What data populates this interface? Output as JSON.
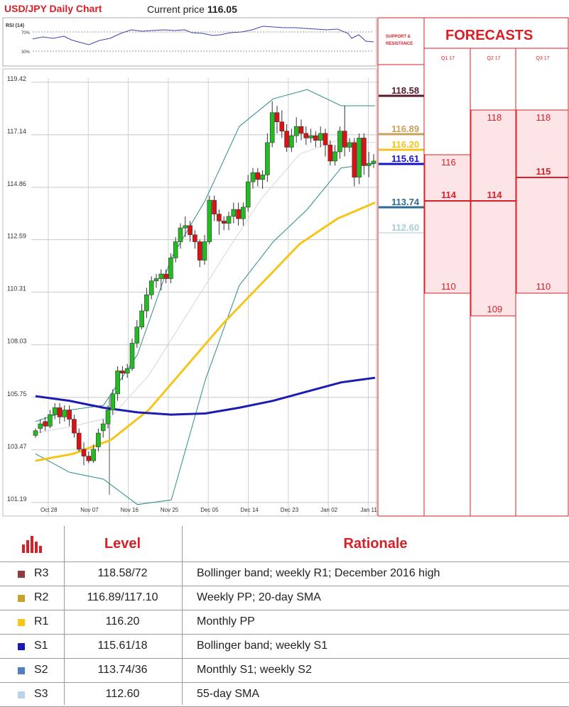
{
  "header": {
    "title": "USD/JPY Daily Chart",
    "price_prefix": "Current price",
    "price_value": "116.05"
  },
  "rsi": {
    "label": "RSI (14)",
    "upper": "70%",
    "lower": "30%"
  },
  "chart_data": {
    "type": "candlestick",
    "title": "USD/JPY Daily Chart",
    "ylim": [
      100.6,
      119.6
    ],
    "yticks": [
      "119.42",
      "117.14",
      "114.86",
      "112.59",
      "110.31",
      "108.03",
      "105.75",
      "103.47",
      "101.19"
    ],
    "xticks": [
      "Oct 28",
      "Nov 07",
      "Nov 16",
      "Nov 25",
      "Dec 05",
      "Dec 14",
      "Dec 23",
      "Jan 02",
      "Jan 11"
    ],
    "candles": [
      [
        104.1,
        104.3,
        104.0,
        104.4
      ],
      [
        104.4,
        104.6,
        104.2,
        104.8
      ],
      [
        104.7,
        104.5,
        104.3,
        104.9
      ],
      [
        104.5,
        105.0,
        104.4,
        105.2
      ],
      [
        105.0,
        105.3,
        104.8,
        105.5
      ],
      [
        105.3,
        104.9,
        104.6,
        105.5
      ],
      [
        104.9,
        105.2,
        104.7,
        105.4
      ],
      [
        105.2,
        104.8,
        104.5,
        105.4
      ],
      [
        104.8,
        104.2,
        104.0,
        105.0
      ],
      [
        104.2,
        103.5,
        103.4,
        104.4
      ],
      [
        103.5,
        103.2,
        102.8,
        103.8
      ],
      [
        103.2,
        103.0,
        102.9,
        103.4
      ],
      [
        103.0,
        103.5,
        102.9,
        103.7
      ],
      [
        103.6,
        104.2,
        103.4,
        104.4
      ],
      [
        104.3,
        104.6,
        104.0,
        104.8
      ],
      [
        104.6,
        105.2,
        104.4,
        105.4
      ],
      [
        105.2,
        105.9,
        105.0,
        106.1
      ],
      [
        105.9,
        106.9,
        105.6,
        107.1
      ],
      [
        106.9,
        106.8,
        106.5,
        107.1
      ],
      [
        106.8,
        107.0,
        106.6,
        107.2
      ],
      [
        107.0,
        108.1,
        106.9,
        108.3
      ],
      [
        108.1,
        108.8,
        107.9,
        109.1
      ],
      [
        108.8,
        109.5,
        108.7,
        109.8
      ],
      [
        109.5,
        110.2,
        109.2,
        110.5
      ],
      [
        110.2,
        110.8,
        110.0,
        111.0
      ],
      [
        110.8,
        110.9,
        110.5,
        111.1
      ],
      [
        110.9,
        111.1,
        110.4,
        111.3
      ],
      [
        111.1,
        110.9,
        110.7,
        111.3
      ],
      [
        110.9,
        111.8,
        110.7,
        112.0
      ],
      [
        111.8,
        112.5,
        111.6,
        112.7
      ],
      [
        112.5,
        113.1,
        112.2,
        113.3
      ],
      [
        113.1,
        113.2,
        112.7,
        113.6
      ],
      [
        113.2,
        112.8,
        112.5,
        113.4
      ],
      [
        112.8,
        112.5,
        112.2,
        113.0
      ],
      [
        112.5,
        111.7,
        111.4,
        112.6
      ],
      [
        111.7,
        112.5,
        111.5,
        112.8
      ],
      [
        112.5,
        114.3,
        112.4,
        114.5
      ],
      [
        114.3,
        113.7,
        113.4,
        114.5
      ],
      [
        113.7,
        113.4,
        112.8,
        113.9
      ],
      [
        113.4,
        113.3,
        113.0,
        113.6
      ],
      [
        113.3,
        113.6,
        113.0,
        113.8
      ],
      [
        113.6,
        113.9,
        113.3,
        114.2
      ],
      [
        113.9,
        113.5,
        113.2,
        114.2
      ],
      [
        113.5,
        114.0,
        113.2,
        114.2
      ],
      [
        114.0,
        115.1,
        113.8,
        115.4
      ],
      [
        115.1,
        115.5,
        114.8,
        115.7
      ],
      [
        115.5,
        115.2,
        114.9,
        115.7
      ],
      [
        115.2,
        115.4,
        114.8,
        115.6
      ],
      [
        115.4,
        116.8,
        115.1,
        117.2
      ],
      [
        116.8,
        118.1,
        116.6,
        118.6
      ],
      [
        118.1,
        117.7,
        117.2,
        118.4
      ],
      [
        117.7,
        117.3,
        117.0,
        118.2
      ],
      [
        117.3,
        116.6,
        116.4,
        117.6
      ],
      [
        116.6,
        117.1,
        116.4,
        117.4
      ],
      [
        117.1,
        117.5,
        116.8,
        117.9
      ],
      [
        117.5,
        117.2,
        116.9,
        117.8
      ],
      [
        117.2,
        117.0,
        116.7,
        117.5
      ],
      [
        117.0,
        117.1,
        116.8,
        117.4
      ],
      [
        117.1,
        116.9,
        116.6,
        117.3
      ],
      [
        116.9,
        117.2,
        116.6,
        117.5
      ],
      [
        117.2,
        116.7,
        116.2,
        117.4
      ],
      [
        116.7,
        116.0,
        115.8,
        116.9
      ],
      [
        116.0,
        116.4,
        115.8,
        116.7
      ],
      [
        116.4,
        117.3,
        116.1,
        117.5
      ],
      [
        117.3,
        116.6,
        116.2,
        118.4
      ],
      [
        116.6,
        116.8,
        116.4,
        117.0
      ],
      [
        116.8,
        115.3,
        114.9,
        117.0
      ],
      [
        115.3,
        117.0,
        115.0,
        117.2
      ],
      [
        117.0,
        115.8,
        115.4,
        117.2
      ],
      [
        115.8,
        115.9,
        115.3,
        116.4
      ],
      [
        115.9,
        116.0,
        115.7,
        116.3
      ]
    ],
    "sma200": [
      105.8,
      105.6,
      105.3,
      105.1,
      105.0,
      105.05,
      105.3,
      105.6,
      106.0,
      106.4,
      106.6
    ],
    "sma55": [
      103.0,
      103.3,
      103.9,
      105.2,
      107.1,
      109.0,
      110.7,
      112.4,
      113.5,
      114.2
    ],
    "bb_upper": [
      104.7,
      105.2,
      105.4,
      107.6,
      111.8,
      114.3,
      117.5,
      118.7,
      119.1,
      118.4,
      118.4
    ],
    "bb_lower": [
      103.3,
      102.5,
      102.2,
      101.1,
      101.3,
      106.5,
      110.6,
      112.5,
      113.9,
      115.7,
      115.9
    ],
    "sma20": [
      104.2,
      104.5,
      104.9,
      106.7,
      109.3,
      111.9,
      114.4,
      116.3,
      116.9,
      116.8
    ]
  },
  "levels_panel": {
    "title": "SUPPORT & RESISTANCE",
    "values": [
      "118.58",
      "116.89",
      "116.20",
      "115.61",
      "113.74",
      "112.60"
    ],
    "colors": [
      "#5a1a2c",
      "#c8a15a",
      "#f0c419",
      "#1414c8",
      "#2e6a93",
      "#a8cfd4"
    ]
  },
  "forecasts": {
    "title": "FORECASTS",
    "columns": [
      "Q1 17",
      "Q2 17",
      "Q3 17"
    ],
    "q1": {
      "high": "116",
      "mid": "114",
      "low": "110"
    },
    "q2": {
      "high": "118",
      "mid": "114",
      "low": "109"
    },
    "q3": {
      "high": "118",
      "mid": "115",
      "low": "110"
    }
  },
  "table": {
    "headers": [
      "Level",
      "Rationale"
    ],
    "rows": [
      {
        "code": "R3",
        "color": "#8e3c3c",
        "level": "118.58/72",
        "rationale": "Bollinger band; weekly R1; December 2016 high"
      },
      {
        "code": "R2",
        "color": "#c9a227",
        "level": "116.89/117.10",
        "rationale": "Weekly PP; 20-day SMA"
      },
      {
        "code": "R1",
        "color": "#f5c518",
        "level": "116.20",
        "rationale": "Monthly PP"
      },
      {
        "code": "S1",
        "color": "#1a1ab4",
        "level": "115.61/18",
        "rationale": "Bollinger band; weekly S1"
      },
      {
        "code": "S2",
        "color": "#4f82bd",
        "level": "113.74/36",
        "rationale": "Monthly S1; weekly S2"
      },
      {
        "code": "S3",
        "color": "#b9d3ea",
        "level": "112.60",
        "rationale": "55-day SMA"
      }
    ]
  }
}
